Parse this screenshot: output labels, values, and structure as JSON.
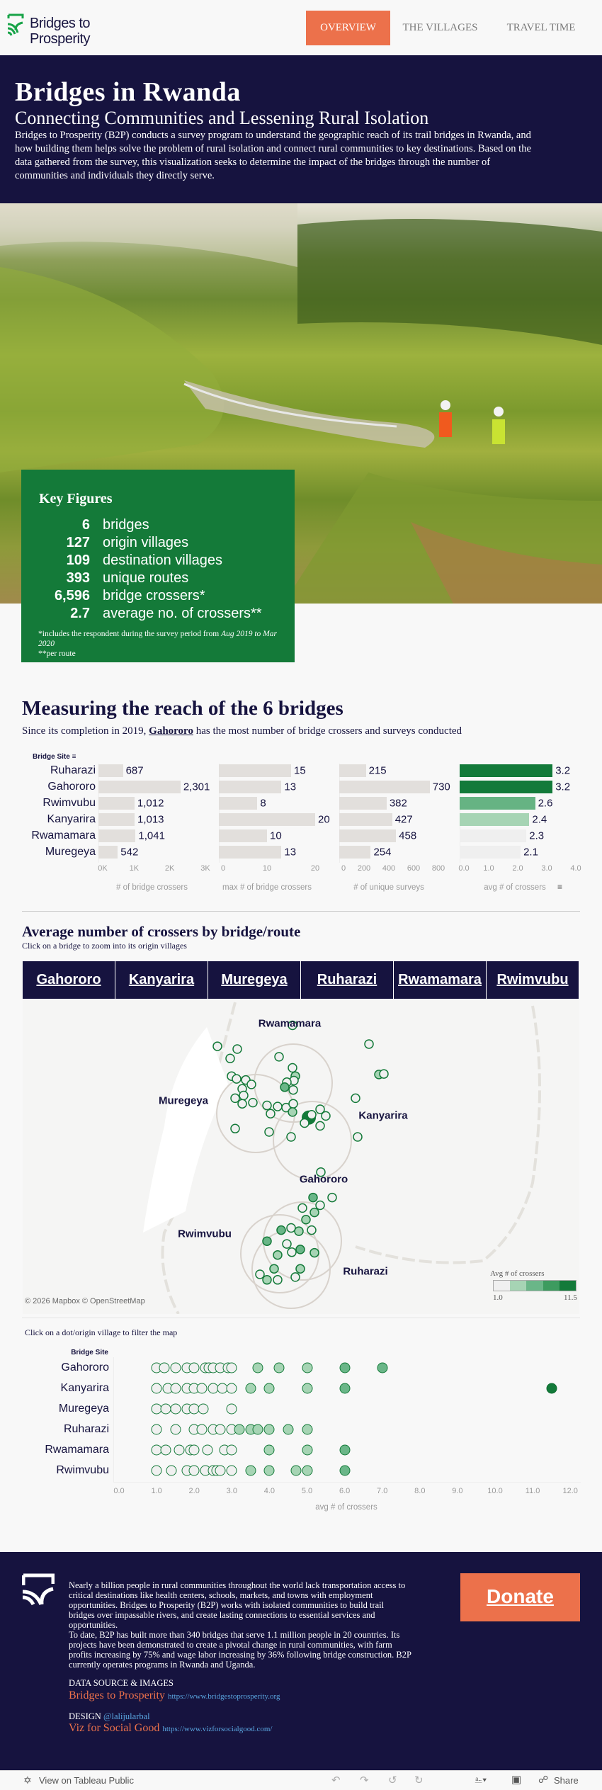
{
  "header": {
    "logo_text_1": "Bridges to",
    "logo_text_2": "Prosperity",
    "nav": [
      {
        "label": "OVERVIEW",
        "active": true
      },
      {
        "label": "THE VILLAGES"
      },
      {
        "label": "TRAVEL TIME"
      }
    ]
  },
  "intro": {
    "title": "Bridges in Rwanda",
    "subtitle": "Connecting Communities and Lessening Rural Isolation",
    "body": "Bridges to Prosperity (B2P) conducts a survey program to understand the geographic reach of its trail bridges in Rwanda, and how building them helps solve the problem of rural isolation and connect rural communities to key destinations. Based on the data gathered from the survey, this visualization seeks to determine the impact of the bridges through the number of communities and individuals they directly serve."
  },
  "key_figures": {
    "title": "Key Figures",
    "items": [
      {
        "num": "6",
        "label": "bridges"
      },
      {
        "num": "127",
        "label": "origin villages"
      },
      {
        "num": "109",
        "label": "destination villages"
      },
      {
        "num": "393",
        "label": "unique routes"
      },
      {
        "num": "6,596",
        "label": "bridge crossers*"
      },
      {
        "num": "2.7",
        "label": "average no. of crossers**"
      }
    ],
    "note_1": "*includes the respondent during the survey period from ",
    "note_period": "Aug 2019 to Mar 2020",
    "note_2": "**per route"
  },
  "reach": {
    "title": "Measuring the reach of the 6 bridges",
    "subtitle_pre": "Since its completion in 2019, ",
    "subtitle_link": "Gahororo",
    "subtitle_post": " has the most number of bridge crossers and surveys conducted"
  },
  "map_section": {
    "title": "Average number of crossers by bridge/route",
    "subtitle": "Click on a bridge to zoom into its origin villages",
    "buttons": [
      "Gahororo",
      "Kanyarira",
      "Muregeya",
      "Ruharazi",
      "Rwamamara",
      "Rwimvubu"
    ],
    "labels": [
      "Rwamamara",
      "Muregeya",
      "Kanyarira",
      "Gahororo",
      "Rwimvubu",
      "Ruharazi"
    ],
    "credit": "© 2026 Mapbox  © OpenStreetMap",
    "legend": {
      "title": "Avg # of crossers",
      "min": "1.0",
      "max": "11.5",
      "colors": [
        "#f0f0f0",
        "#a6d4b4",
        "#6ab688",
        "#3d9b5f",
        "#137a3a"
      ]
    }
  },
  "chart_data": [
    {
      "type": "bar",
      "row_header": "Bridge Site",
      "categories": [
        "Ruharazi",
        "Gahororo",
        "Rwimvubu",
        "Kanyarira",
        "Rwamamara",
        "Muregeya"
      ],
      "series": [
        {
          "name": "# of bridge crossers",
          "values": [
            687,
            2301,
            1012,
            1013,
            1041,
            542
          ],
          "labels": [
            "687",
            "2,301",
            "1,012",
            "1,013",
            "1,041",
            "542"
          ],
          "xlim": [
            0,
            3000
          ],
          "ticks": [
            "0K",
            "1K",
            "2K",
            "3K"
          ],
          "tick_values": [
            0,
            1000,
            2000,
            3000
          ]
        },
        {
          "name": "max # of bridge crossers",
          "values": [
            15,
            13,
            8,
            20,
            10,
            13
          ],
          "labels": [
            "15",
            "13",
            "8",
            "20",
            "10",
            "13"
          ],
          "xlim": [
            0,
            20
          ],
          "ticks": [
            "0",
            "10",
            "20"
          ],
          "tick_values": [
            0,
            10,
            20
          ]
        },
        {
          "name": "# of unique surveys",
          "values": [
            215,
            730,
            382,
            427,
            458,
            254
          ],
          "labels": [
            "215",
            "730",
            "382",
            "427",
            "458",
            "254"
          ],
          "xlim": [
            0,
            800
          ],
          "ticks": [
            "0",
            "200",
            "400",
            "600",
            "800"
          ],
          "tick_values": [
            0,
            200,
            400,
            600,
            800
          ]
        },
        {
          "name": "avg # of crossers",
          "values": [
            3.2,
            3.2,
            2.6,
            2.4,
            2.3,
            2.1
          ],
          "labels": [
            "3.2",
            "3.2",
            "2.6",
            "2.4",
            "2.3",
            "2.1"
          ],
          "xlim": [
            0,
            4
          ],
          "ticks": [
            "0.0",
            "1.0",
            "2.0",
            "3.0",
            "4.0"
          ],
          "tick_values": [
            0,
            1,
            2,
            3,
            4
          ],
          "colors": [
            "#137a3a",
            "#137a3a",
            "#66b383",
            "#a6d4b4",
            "#efefef",
            "#efefef"
          ]
        }
      ],
      "bar_color": "#e2dfdc"
    },
    {
      "type": "scatter",
      "caption": "Click on a dot/origin village to filter the map",
      "row_header": "Bridge Site",
      "xlabel": "avg # of crossers",
      "xlim": [
        0,
        12
      ],
      "ticks": [
        "0.0",
        "1.0",
        "2.0",
        "3.0",
        "4.0",
        "5.0",
        "6.0",
        "7.0",
        "8.0",
        "9.0",
        "10.0",
        "11.0",
        "12.0"
      ],
      "rows": [
        {
          "name": "Gahororo",
          "values": [
            1.0,
            1.2,
            1.5,
            1.8,
            2.0,
            2.3,
            2.4,
            2.5,
            2.7,
            2.9,
            3.0,
            3.7,
            4.25,
            5.0,
            6.0,
            7.0
          ]
        },
        {
          "name": "Kanyarira",
          "values": [
            1.0,
            1.3,
            1.5,
            1.8,
            2.0,
            2.2,
            2.5,
            2.75,
            3.0,
            3.5,
            4.0,
            5.0,
            6.0,
            11.5
          ]
        },
        {
          "name": "Muregeya",
          "values": [
            1.0,
            1.25,
            1.5,
            1.8,
            2.0,
            2.25,
            3.0
          ]
        },
        {
          "name": "Ruharazi",
          "values": [
            1.0,
            1.5,
            2.0,
            2.2,
            2.5,
            2.7,
            3.0,
            3.2,
            3.5,
            3.7,
            4.0,
            4.5,
            5.0
          ]
        },
        {
          "name": "Rwamamara",
          "values": [
            1.0,
            1.25,
            1.6,
            1.9,
            2.0,
            2.35,
            2.8,
            3.0,
            4.0,
            5.0,
            6.0
          ]
        },
        {
          "name": "Rwimvubu",
          "values": [
            1.0,
            1.4,
            1.8,
            2.0,
            2.3,
            2.5,
            2.6,
            2.7,
            3.0,
            3.5,
            4.0,
            4.7,
            5.0,
            6.0
          ]
        }
      ]
    }
  ],
  "footer": {
    "p1": "Nearly a billion people in rural communities throughout the world lack transportation access to critical destinations like health centers, schools, markets, and towns with employment opportunities. Bridges to Prosperity (B2P) works with isolated communities to build trail bridges over impassable rivers, and create lasting connections to essential services and opportunities.",
    "p2": "To date, B2P has built more than 340 bridges that serve 1.1 million people in 20 countries. Its projects have been demonstrated to create a pivotal change in rural communities, with farm profits increasing by 75% and wage labor increasing by 36% following bridge construction. B2P currently operates programs in Rwanda and Uganda.",
    "source_label": "DATA SOURCE & IMAGES",
    "source_name": "Bridges to Prosperity",
    "source_url": "https://www.bridgestoprosperity.org",
    "design_label": "DESIGN",
    "design_handle": "@lalijularbal",
    "viz_name": "Viz for Social Good",
    "viz_url": "https://www.vizforsocialgood.com/",
    "donate": "Donate"
  },
  "bottombar": {
    "view_label": "View on Tableau Public",
    "share": "Share"
  },
  "colors": {
    "navy": "#16133f",
    "orange": "#ec714b",
    "green": "#147a39"
  }
}
